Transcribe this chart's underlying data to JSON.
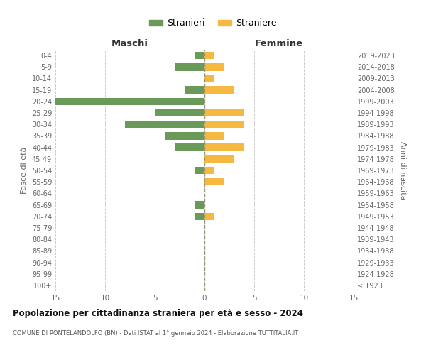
{
  "age_groups": [
    "100+",
    "95-99",
    "90-94",
    "85-89",
    "80-84",
    "75-79",
    "70-74",
    "65-69",
    "60-64",
    "55-59",
    "50-54",
    "45-49",
    "40-44",
    "35-39",
    "30-34",
    "25-29",
    "20-24",
    "15-19",
    "10-14",
    "5-9",
    "0-4"
  ],
  "birth_years": [
    "≤ 1923",
    "1924-1928",
    "1929-1933",
    "1934-1938",
    "1939-1943",
    "1944-1948",
    "1949-1953",
    "1954-1958",
    "1959-1963",
    "1964-1968",
    "1969-1973",
    "1974-1978",
    "1979-1983",
    "1984-1988",
    "1989-1993",
    "1994-1998",
    "1999-2003",
    "2004-2008",
    "2009-2013",
    "2014-2018",
    "2019-2023"
  ],
  "males": [
    0,
    0,
    0,
    0,
    0,
    0,
    1,
    1,
    0,
    0,
    1,
    0,
    3,
    4,
    8,
    5,
    15,
    2,
    0,
    3,
    1
  ],
  "females": [
    0,
    0,
    0,
    0,
    0,
    0,
    1,
    0,
    0,
    2,
    1,
    3,
    4,
    2,
    4,
    4,
    0,
    3,
    1,
    2,
    1
  ],
  "male_color": "#6a9a5a",
  "female_color": "#f5b942",
  "title": "Popolazione per cittadinanza straniera per età e sesso - 2024",
  "subtitle": "COMUNE DI PONTELANDOLFO (BN) - Dati ISTAT al 1° gennaio 2024 - Elaborazione TUTTITALIA.IT",
  "xlabel_left": "Maschi",
  "xlabel_right": "Femmine",
  "ylabel_left": "Fasce di età",
  "ylabel_right": "Anni di nascita",
  "legend_male": "Stranieri",
  "legend_female": "Straniere",
  "xlim": 15,
  "background_color": "#ffffff",
  "grid_color": "#cccccc"
}
